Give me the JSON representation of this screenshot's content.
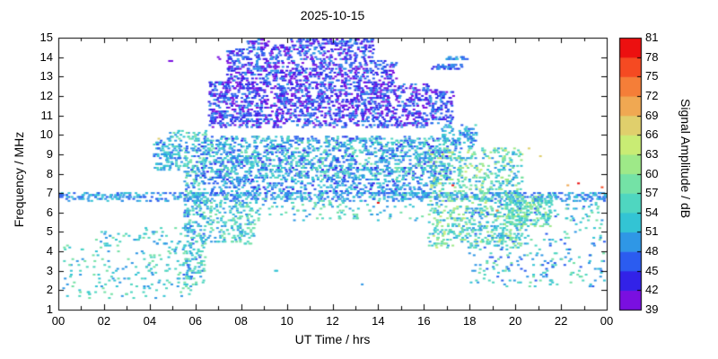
{
  "chart_data": {
    "type": "scatter",
    "subtype": "spectrogram",
    "title": "2025-10-15",
    "xlabel": "UT Time / hrs",
    "ylabel": "Frequency / MHz",
    "colorbar_label": "Signal Amplitude / dB",
    "xlim": [
      0,
      24
    ],
    "ylim": [
      1,
      15
    ],
    "amplitude_range": [
      39,
      81
    ],
    "grid": false,
    "legend": "colorbar-right",
    "x_ticks": [
      {
        "value": 0,
        "label": "00"
      },
      {
        "value": 2,
        "label": "02"
      },
      {
        "value": 4,
        "label": "04"
      },
      {
        "value": 6,
        "label": "06"
      },
      {
        "value": 8,
        "label": "08"
      },
      {
        "value": 10,
        "label": "10"
      },
      {
        "value": 12,
        "label": "12"
      },
      {
        "value": 14,
        "label": "14"
      },
      {
        "value": 16,
        "label": "16"
      },
      {
        "value": 18,
        "label": "18"
      },
      {
        "value": 20,
        "label": "20"
      },
      {
        "value": 22,
        "label": "22"
      },
      {
        "value": 24,
        "label": "00"
      }
    ],
    "y_ticks": [
      1,
      2,
      3,
      4,
      5,
      6,
      7,
      8,
      9,
      10,
      11,
      12,
      13,
      14,
      15
    ],
    "colorbar_ticks": [
      39,
      42,
      45,
      48,
      51,
      54,
      57,
      60,
      63,
      66,
      69,
      72,
      75,
      78,
      81
    ],
    "color_scale": [
      {
        "min": 39,
        "max": 42,
        "color": "#7a0fe0"
      },
      {
        "min": 42,
        "max": 45,
        "color": "#3222e8"
      },
      {
        "min": 45,
        "max": 48,
        "color": "#2b5cf0"
      },
      {
        "min": 48,
        "max": 51,
        "color": "#2f97e6"
      },
      {
        "min": 51,
        "max": 54,
        "color": "#33c4d4"
      },
      {
        "min": 54,
        "max": 57,
        "color": "#4fd6c0"
      },
      {
        "min": 57,
        "max": 60,
        "color": "#74e2a6"
      },
      {
        "min": 60,
        "max": 63,
        "color": "#9ee988"
      },
      {
        "min": 63,
        "max": 66,
        "color": "#c9ec74"
      },
      {
        "min": 66,
        "max": 69,
        "color": "#e0cf6c"
      },
      {
        "min": 69,
        "max": 72,
        "color": "#f0a852"
      },
      {
        "min": 72,
        "max": 75,
        "color": "#f57e38"
      },
      {
        "min": 75,
        "max": 78,
        "color": "#f54a22"
      },
      {
        "min": 78,
        "max": 81,
        "color": "#ec1010"
      }
    ],
    "regions": [
      {
        "name": "7mhz-band-all-day",
        "t": [
          0,
          24
        ],
        "f": [
          6.6,
          7.05
        ],
        "n": 620,
        "amp": [
          45,
          54
        ]
      },
      {
        "name": "morning-low-scatter",
        "t": [
          0.2,
          5.8
        ],
        "f": [
          1.6,
          4.3
        ],
        "n": 170,
        "amp": [
          48,
          60
        ]
      },
      {
        "name": "morning-4-5mhz",
        "t": [
          1.4,
          5.6
        ],
        "f": [
          4.3,
          5.2
        ],
        "n": 55,
        "amp": [
          48,
          58
        ]
      },
      {
        "name": "early-9mhz-cluster",
        "t": [
          4.2,
          5.4
        ],
        "f": [
          8.2,
          9.7
        ],
        "n": 130,
        "amp": [
          46,
          57
        ]
      },
      {
        "name": "sunrise-column",
        "t": [
          5.5,
          6.45
        ],
        "f": [
          2.2,
          9.6
        ],
        "n": 340,
        "amp": [
          46,
          60
        ]
      },
      {
        "name": "morning-10mhz-sparse",
        "t": [
          4.8,
          6.5
        ],
        "f": [
          9.7,
          10.2
        ],
        "n": 40,
        "amp": [
          48,
          60
        ]
      },
      {
        "name": "day-f-layer-band",
        "t": [
          6.3,
          17.2
        ],
        "f": [
          7.7,
          9.9
        ],
        "n": 1500,
        "amp": [
          44,
          58
        ]
      },
      {
        "name": "day-7mhz-band",
        "t": [
          6.5,
          16.5
        ],
        "f": [
          6.95,
          7.7
        ],
        "n": 330,
        "amp": [
          44,
          54
        ]
      },
      {
        "name": "morning-low-day",
        "t": [
          6.4,
          8.6
        ],
        "f": [
          4.4,
          6.9
        ],
        "n": 210,
        "amp": [
          48,
          60
        ]
      },
      {
        "name": "midday-6mhz-sparse",
        "t": [
          8.6,
          16.0
        ],
        "f": [
          5.6,
          6.9
        ],
        "n": 130,
        "amp": [
          48,
          60
        ]
      },
      {
        "name": "arch-1",
        "t": [
          6.6,
          7.4
        ],
        "f": [
          10.4,
          12.8
        ],
        "n": 160,
        "amp": [
          39,
          50
        ]
      },
      {
        "name": "arch-2",
        "t": [
          7.4,
          8.3
        ],
        "f": [
          10.4,
          14.4
        ],
        "n": 260,
        "amp": [
          39,
          50
        ]
      },
      {
        "name": "arch-3",
        "t": [
          8.3,
          9.2
        ],
        "f": [
          10.4,
          14.9
        ],
        "n": 280,
        "amp": [
          39,
          50
        ]
      },
      {
        "name": "arch-4",
        "t": [
          9.2,
          10.2
        ],
        "f": [
          10.4,
          14.6
        ],
        "n": 280,
        "amp": [
          39,
          50
        ]
      },
      {
        "name": "arch-peak",
        "t": [
          10.2,
          13.8
        ],
        "f": [
          10.4,
          15.0
        ],
        "n": 1000,
        "amp": [
          39,
          50
        ]
      },
      {
        "name": "arch-5",
        "t": [
          13.8,
          14.8
        ],
        "f": [
          10.4,
          13.8
        ],
        "n": 220,
        "amp": [
          39,
          50
        ]
      },
      {
        "name": "arch-6",
        "t": [
          14.8,
          16.2
        ],
        "f": [
          10.4,
          12.6
        ],
        "n": 190,
        "amp": [
          39,
          50
        ]
      },
      {
        "name": "arch-7",
        "t": [
          16.2,
          17.3
        ],
        "f": [
          10.6,
          12.3
        ],
        "n": 120,
        "amp": [
          40,
          51
        ]
      },
      {
        "name": "13p5mhz-line",
        "t": [
          16.3,
          17.7
        ],
        "f": [
          13.35,
          13.65
        ],
        "n": 42,
        "amp": [
          42,
          50
        ]
      },
      {
        "name": "13p9mhz-line",
        "t": [
          17.0,
          17.9
        ],
        "f": [
          13.85,
          14.05
        ],
        "n": 22,
        "amp": [
          45,
          53
        ]
      },
      {
        "name": "afternoon-descent",
        "t": [
          16.2,
          20.3
        ],
        "f": [
          4.2,
          9.3
        ],
        "n": 780,
        "amp": [
          48,
          64
        ]
      },
      {
        "name": "dusk-10mhz-sparse",
        "t": [
          16.8,
          18.3
        ],
        "f": [
          9.3,
          10.5
        ],
        "n": 100,
        "amp": [
          45,
          56
        ]
      },
      {
        "name": "evening-cluster",
        "t": [
          19.6,
          21.6
        ],
        "f": [
          5.3,
          6.9
        ],
        "n": 200,
        "amp": [
          51,
          63
        ]
      },
      {
        "name": "evening-low-scatter",
        "t": [
          18.0,
          23.9
        ],
        "f": [
          2.2,
          6.6
        ],
        "n": 320,
        "amp": [
          45,
          60
        ]
      }
    ],
    "points": [
      {
        "t": 4.85,
        "f": 13.8,
        "amp": 40
      },
      {
        "t": 4.95,
        "f": 13.8,
        "amp": 40
      },
      {
        "t": 7.0,
        "f": 13.95,
        "amp": 40
      },
      {
        "t": 7.05,
        "f": 13.9,
        "amp": 40
      },
      {
        "t": 17.25,
        "f": 7.4,
        "amp": 80
      },
      {
        "t": 22.75,
        "f": 7.45,
        "amp": 80
      },
      {
        "t": 22.3,
        "f": 7.4,
        "amp": 70
      },
      {
        "t": 23.8,
        "f": 7.3,
        "amp": 76
      },
      {
        "t": 19.2,
        "f": 6.1,
        "amp": 74
      },
      {
        "t": 20.6,
        "f": 9.3,
        "amp": 67
      },
      {
        "t": 4.4,
        "f": 9.75,
        "amp": 67
      },
      {
        "t": 14.0,
        "f": 6.45,
        "amp": 78
      },
      {
        "t": 21.1,
        "f": 8.9,
        "amp": 66
      },
      {
        "t": 9.5,
        "f": 3.0,
        "amp": 52
      },
      {
        "t": 9.55,
        "f": 2.95,
        "amp": 52
      },
      {
        "t": 13.3,
        "f": 2.25,
        "amp": 50
      }
    ]
  }
}
